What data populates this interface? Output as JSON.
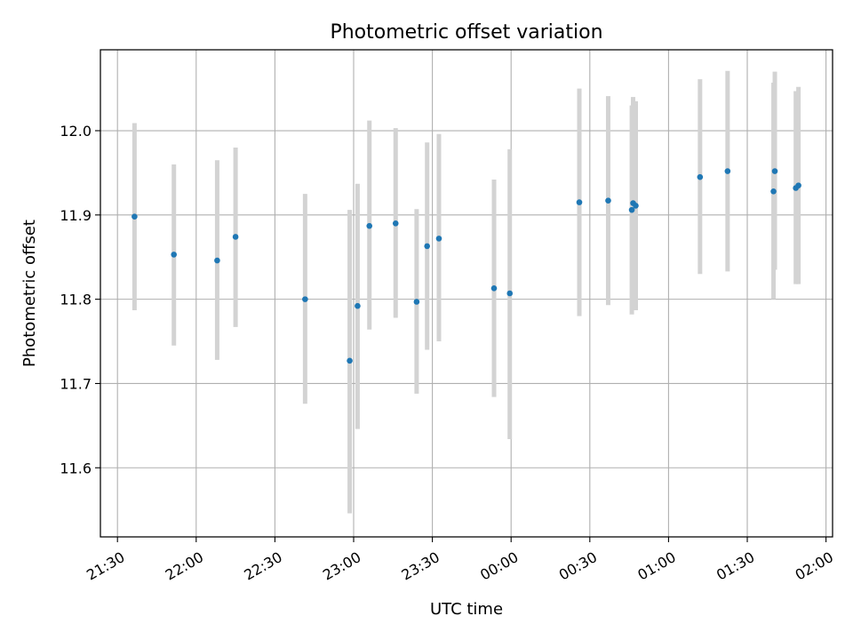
{
  "chart_data": {
    "type": "scatter",
    "title": "Photometric offset variation",
    "xlabel": "UTC time",
    "ylabel": "Photometric offset",
    "x_tick_labels": [
      "21:30",
      "22:00",
      "22:30",
      "23:00",
      "23:30",
      "00:00",
      "00:30",
      "01:00",
      "01:30",
      "02:00"
    ],
    "x_tick_minutes": [
      -150,
      -120,
      -90,
      -60,
      -30,
      0,
      30,
      60,
      90,
      120
    ],
    "y_ticks": [
      11.6,
      11.7,
      11.8,
      11.9,
      12.0
    ],
    "y_tick_labels": [
      "11.6",
      "11.7",
      "11.8",
      "11.9",
      "12.0"
    ],
    "xlim_minutes": [
      -156.5,
      122.5
    ],
    "ylim": [
      11.518,
      12.096
    ],
    "grid": true,
    "colors": {
      "marker": "#1f77b4",
      "errorbar": "#d3d3d3",
      "grid": "#b0b0b0"
    },
    "points": [
      {
        "t": -143.5,
        "y": 11.898,
        "lo": 11.787,
        "hi": 12.009
      },
      {
        "t": -128.5,
        "y": 11.853,
        "lo": 11.745,
        "hi": 11.96
      },
      {
        "t": -112.0,
        "y": 11.846,
        "lo": 11.728,
        "hi": 11.965
      },
      {
        "t": -105.0,
        "y": 11.874,
        "lo": 11.767,
        "hi": 11.98
      },
      {
        "t": -78.5,
        "y": 11.8,
        "lo": 11.676,
        "hi": 11.925
      },
      {
        "t": -61.5,
        "y": 11.727,
        "lo": 11.546,
        "hi": 11.906
      },
      {
        "t": -58.5,
        "y": 11.792,
        "lo": 11.646,
        "hi": 11.937
      },
      {
        "t": -54.0,
        "y": 11.887,
        "lo": 11.764,
        "hi": 12.012
      },
      {
        "t": -44.0,
        "y": 11.89,
        "lo": 11.778,
        "hi": 12.003
      },
      {
        "t": -36.0,
        "y": 11.797,
        "lo": 11.688,
        "hi": 11.907
      },
      {
        "t": -32.0,
        "y": 11.863,
        "lo": 11.74,
        "hi": 11.986
      },
      {
        "t": -27.5,
        "y": 11.872,
        "lo": 11.75,
        "hi": 11.996
      },
      {
        "t": -6.5,
        "y": 11.813,
        "lo": 11.684,
        "hi": 11.942
      },
      {
        "t": -0.5,
        "y": 11.807,
        "lo": 11.634,
        "hi": 11.978
      },
      {
        "t": 26.0,
        "y": 11.915,
        "lo": 11.78,
        "hi": 12.05
      },
      {
        "t": 37.0,
        "y": 11.917,
        "lo": 11.793,
        "hi": 12.041
      },
      {
        "t": 46.0,
        "y": 11.906,
        "lo": 11.782,
        "hi": 12.03
      },
      {
        "t": 46.5,
        "y": 11.914,
        "lo": 11.788,
        "hi": 12.04
      },
      {
        "t": 47.5,
        "y": 11.911,
        "lo": 11.787,
        "hi": 12.035
      },
      {
        "t": 72.0,
        "y": 11.945,
        "lo": 11.83,
        "hi": 12.061
      },
      {
        "t": 82.5,
        "y": 11.952,
        "lo": 11.833,
        "hi": 12.071
      },
      {
        "t": 100.0,
        "y": 11.928,
        "lo": 11.8,
        "hi": 12.057
      },
      {
        "t": 100.5,
        "y": 11.952,
        "lo": 11.835,
        "hi": 12.07
      },
      {
        "t": 108.5,
        "y": 11.932,
        "lo": 11.818,
        "hi": 12.047
      },
      {
        "t": 109.5,
        "y": 11.935,
        "lo": 11.818,
        "hi": 12.052
      }
    ]
  }
}
